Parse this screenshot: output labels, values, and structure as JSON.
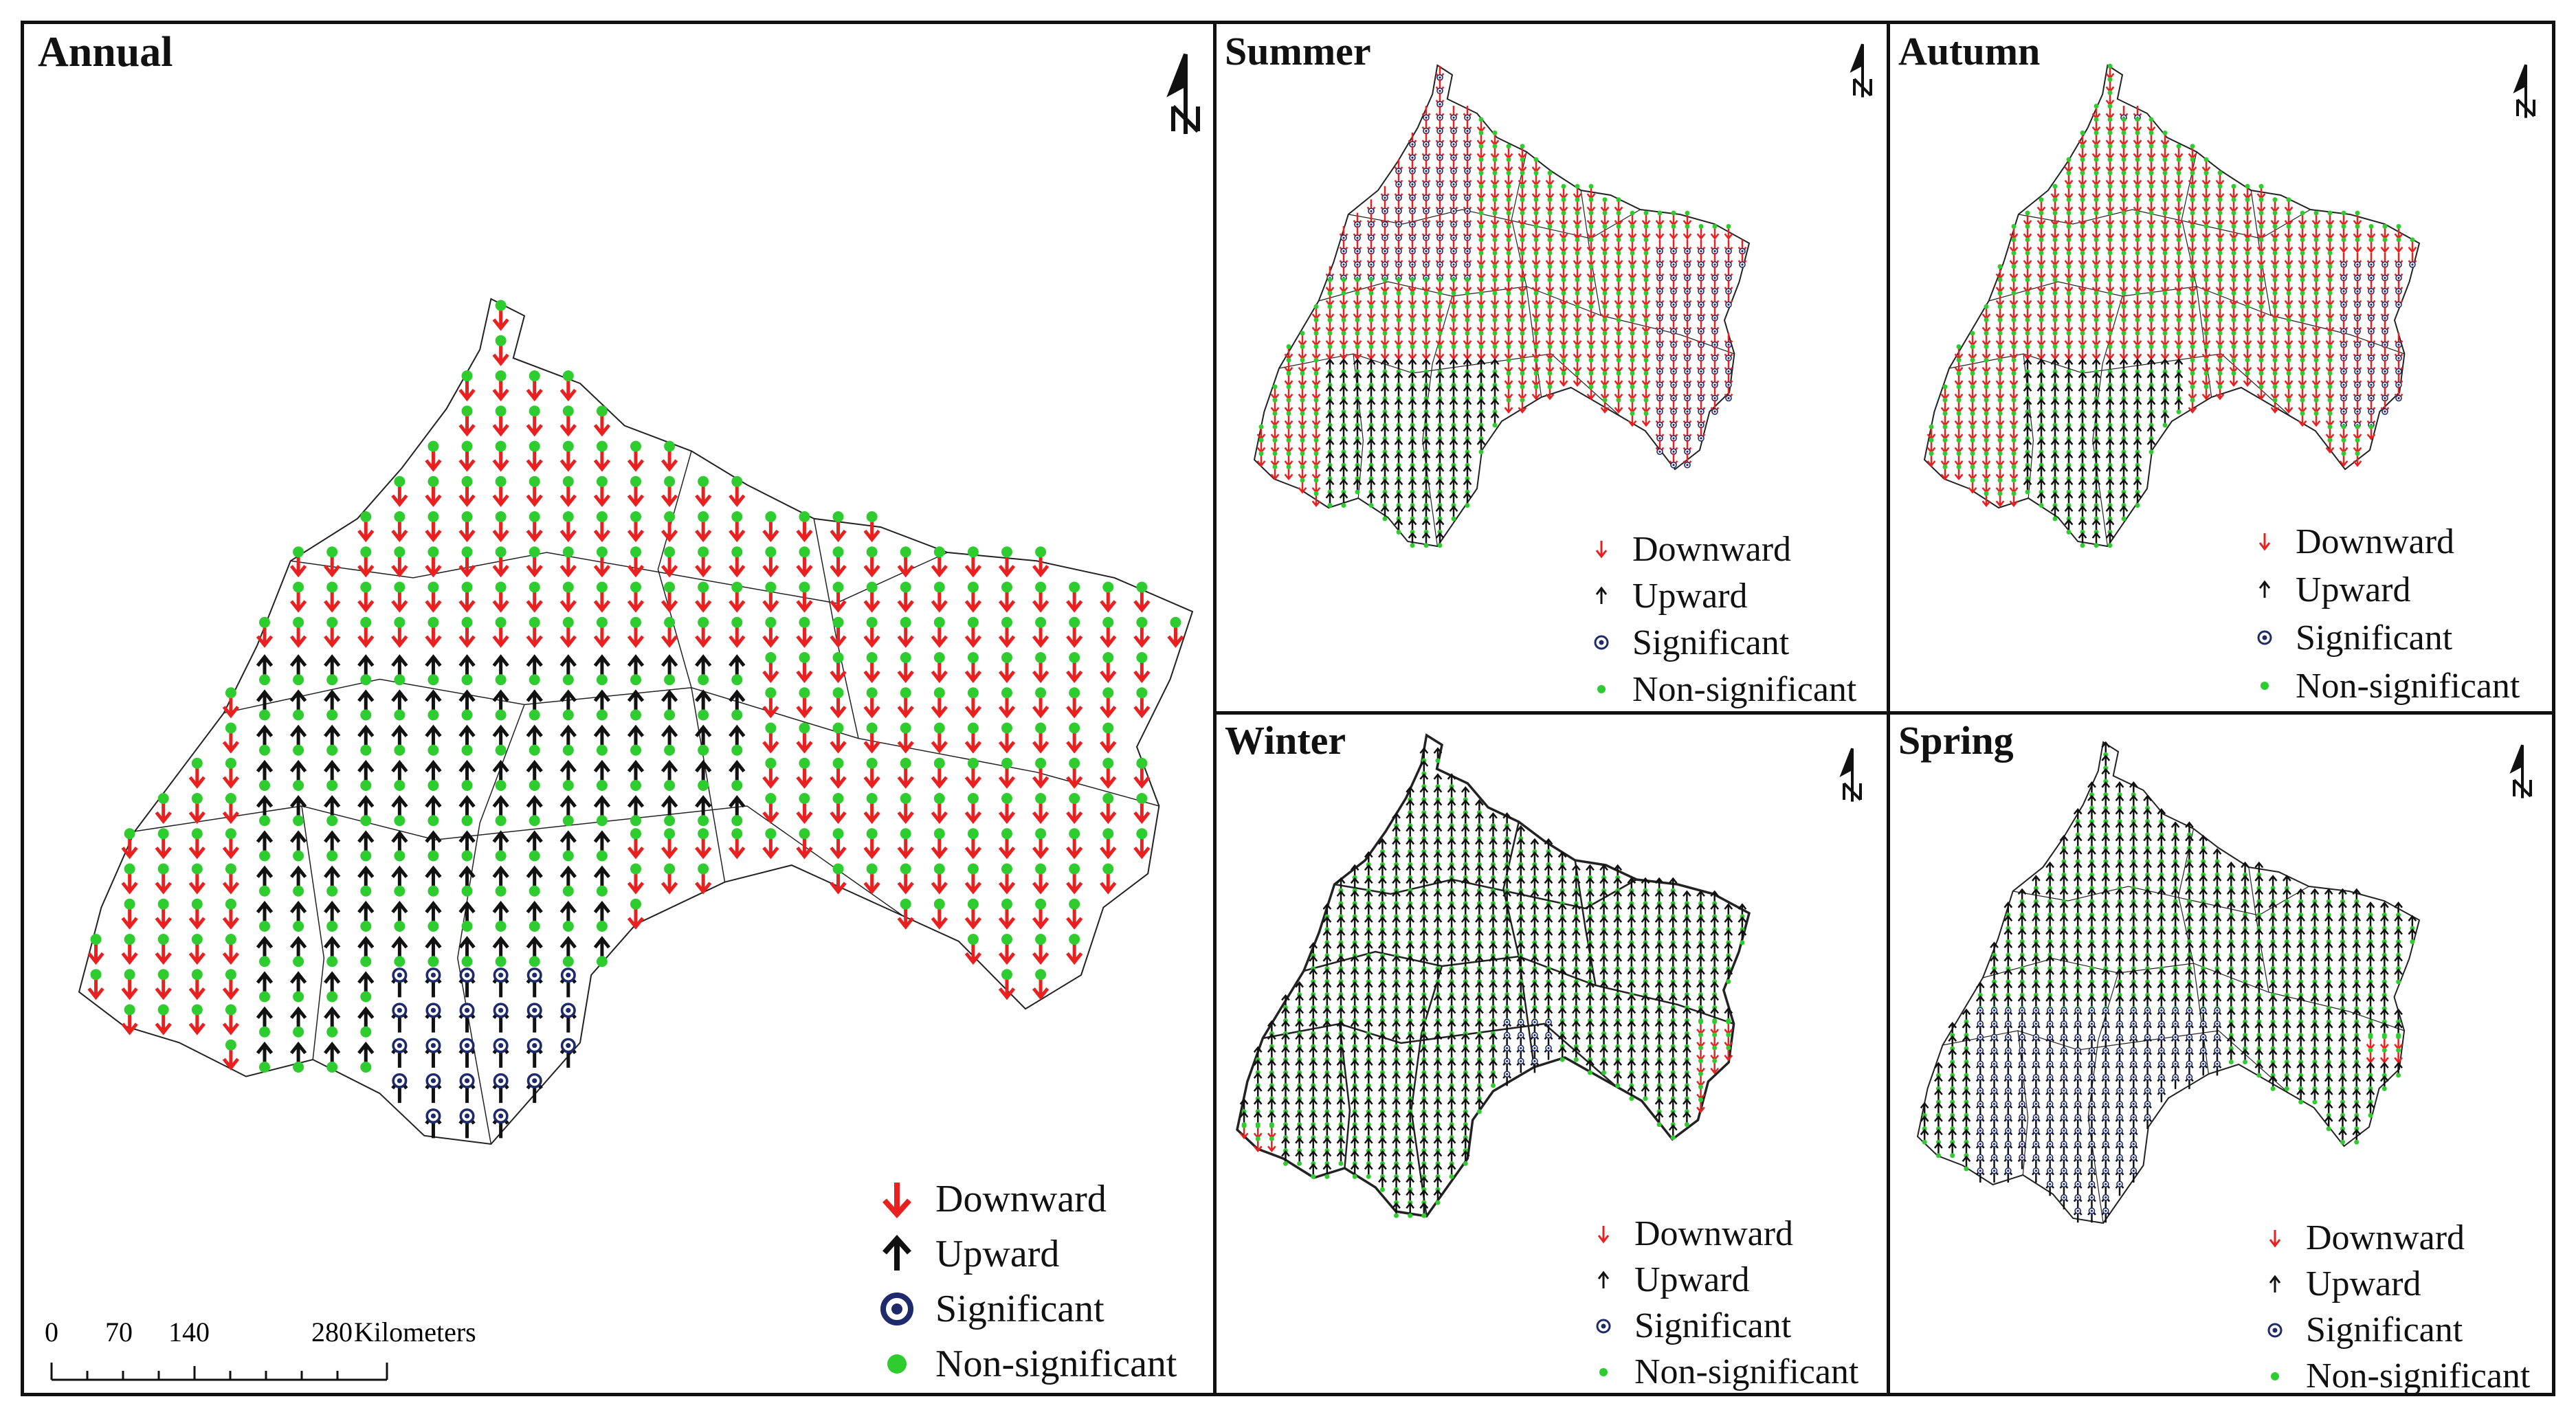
{
  "panels": {
    "annual": {
      "title": "Annual"
    },
    "summer": {
      "title": "Summer"
    },
    "autumn": {
      "title": "Autumn"
    },
    "winter": {
      "title": "Winter"
    },
    "spring": {
      "title": "Spring"
    }
  },
  "legend": {
    "downward": "Downward",
    "upward": "Upward",
    "significant": "Significant",
    "non_significant": "Non-significant"
  },
  "scale": {
    "ticks": [
      "0",
      "70",
      "140",
      "280"
    ],
    "unit": "Kilometers"
  },
  "north_arrow_label": "N",
  "colors": {
    "downward": "#e8201f",
    "upward": "#111111",
    "significant": "#1f2a6b",
    "non_significant": "#2ecc2e",
    "boundary": "#222222"
  }
}
